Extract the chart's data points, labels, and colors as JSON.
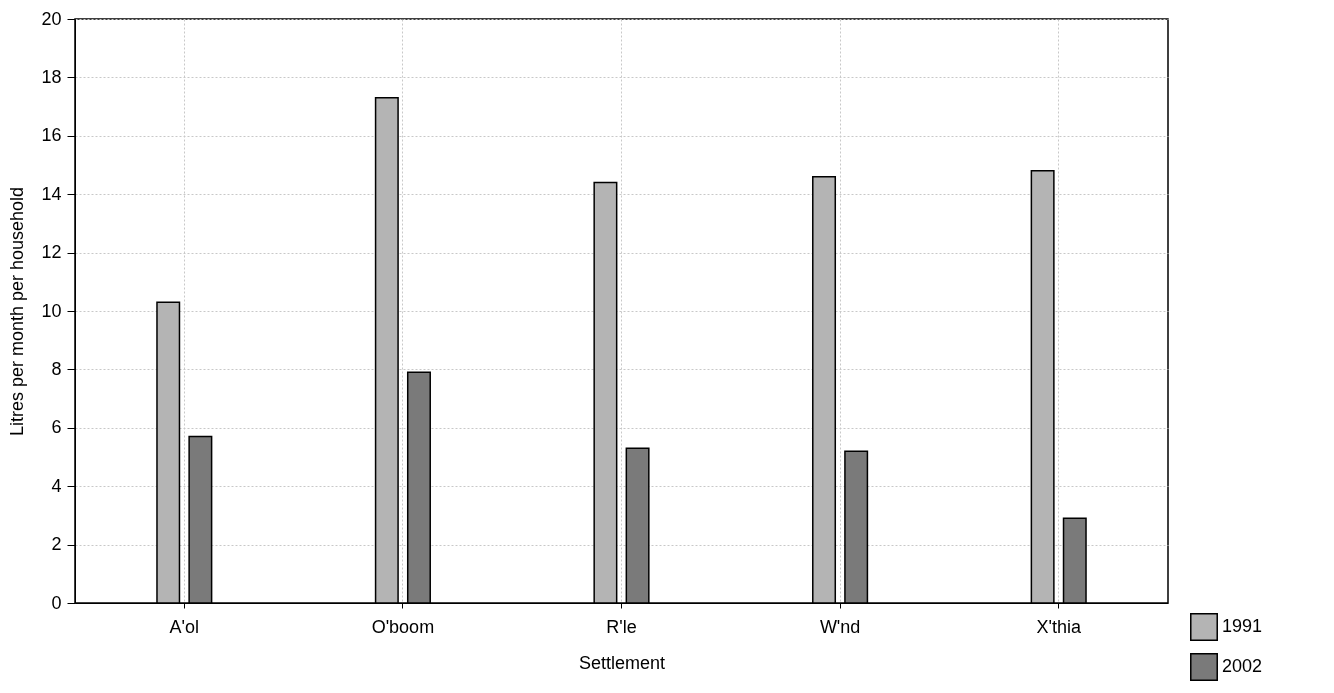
{
  "chart_data": {
    "type": "bar",
    "xlabel": "Settlement",
    "ylabel": "Litres per month per household",
    "categories": [
      "A'ol",
      "O'boom",
      "R'le",
      "W'nd",
      "X'thia"
    ],
    "series": [
      {
        "name": "1991",
        "color": "#b4b4b4",
        "values": [
          10.3,
          17.3,
          14.4,
          14.6,
          14.8
        ]
      },
      {
        "name": "2002",
        "color": "#7a7a7a",
        "values": [
          5.7,
          7.9,
          5.3,
          5.2,
          2.9
        ]
      }
    ],
    "ylim": [
      0,
      20
    ],
    "yticks": [
      0,
      2,
      4,
      6,
      8,
      10,
      12,
      14,
      16,
      18,
      20
    ],
    "grid": true,
    "legend": "bottom right"
  }
}
